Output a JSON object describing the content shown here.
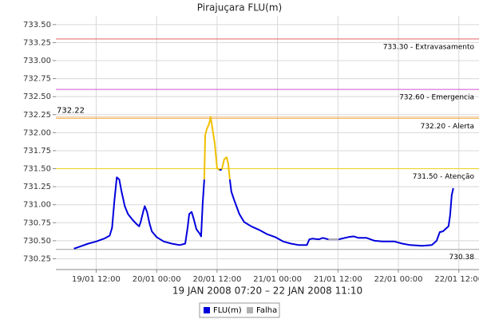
{
  "chart_data": {
    "type": "line",
    "title": "Pirajuçara FLU(m)",
    "subtitle": "19 JAN 2008 07:20 – 22 JAN 2008 11:10",
    "xlim": [
      "19/01 04:00",
      "22/01 16:00"
    ],
    "xticks": [
      "19/01 12:00",
      "20/01 00:00",
      "20/01 12:00",
      "21/01 00:00",
      "21/01 12:00",
      "22/01 00:00",
      "22/01 12:00"
    ],
    "ylim": [
      730.1,
      733.62
    ],
    "yticks": [
      {
        "value": 730.25,
        "label": "730.25"
      },
      {
        "value": 730.5,
        "label": "730.50"
      },
      {
        "value": 730.75,
        "label": "730.75"
      },
      {
        "value": 731,
        "label": "731.00"
      },
      {
        "value": 731.25,
        "label": "731.25"
      },
      {
        "value": 731.5,
        "label": "731.50"
      },
      {
        "value": 731.75,
        "label": "731.75"
      },
      {
        "value": 732,
        "label": "732.00"
      },
      {
        "value": 732.25,
        "label": "732.25"
      },
      {
        "value": 732.5,
        "label": "732.50"
      },
      {
        "value": 732.75,
        "label": "732.75"
      },
      {
        "value": 733,
        "label": "733.00"
      },
      {
        "value": 733.25,
        "label": "733.25"
      },
      {
        "value": 733.5,
        "label": "733.50"
      }
    ],
    "grid": true,
    "thresholds": [
      {
        "value": 733.3,
        "label": "733.30 - Extravasamento",
        "color": "#e06060"
      },
      {
        "value": 732.6,
        "label": "732.60 - Emergencia",
        "color": "#d050d0"
      },
      {
        "value": 732.2,
        "label": "732.20 - Alerta",
        "color": "#f0a030"
      },
      {
        "value": 731.5,
        "label": "731.50 - Atenção",
        "color": "#f0d020"
      },
      {
        "value": 730.38,
        "label": "730.38",
        "color": "#a0a0a0"
      }
    ],
    "annotations": [
      {
        "value": 732.22,
        "label": "732.22",
        "color": "#f0c8a0"
      }
    ],
    "series": [
      {
        "name": "FLU(m)",
        "color": "#0000dd",
        "x": [
          "19/01 07:35",
          "19/01 08:50",
          "19/01 10:25",
          "19/01 12:00",
          "19/01 13:35",
          "19/01 14:41",
          "19/01 15:09",
          "19/01 15:38",
          "19/01 16:06",
          "19/01 16:35",
          "19/01 17:03",
          "19/01 17:41",
          "19/01 18:19",
          "19/01 19:06",
          "19/01 19:54",
          "19/01 20:32",
          "19/01 20:50",
          "19/01 21:19",
          "19/01 21:38",
          "19/01 22:06",
          "19/01 22:35",
          "19/01 23:03",
          "20/01 00:00",
          "20/01 01:25",
          "20/01 03:00",
          "20/01 04:35",
          "20/01 05:41",
          "20/01 06:09",
          "20/01 06:28",
          "20/01 06:57",
          "20/01 07:25",
          "20/01 07:54",
          "20/01 08:32",
          "20/01 08:50",
          "20/01 09:09",
          "20/01 09:28",
          "20/01 09:38",
          "20/01 09:57",
          "20/01 10:25",
          "20/01 10:44",
          "20/01 11:03",
          "20/01 11:32",
          "20/01 12:00",
          "20/01 12:28",
          "20/01 12:57",
          "20/01 13:25",
          "20/01 13:54",
          "20/01 14:13",
          "20/01 14:32",
          "20/01 14:50",
          "20/01 15:28",
          "20/01 16:25",
          "20/01 17:22",
          "20/01 18:47",
          "20/01 20:22",
          "20/01 21:57",
          "20/01 23:32",
          "21/01 01:06",
          "21/01 02:41",
          "21/01 04:16",
          "21/01 05:50",
          "21/01 06:19",
          "21/01 06:57",
          "21/01 08:13",
          "21/01 09:00",
          "21/01 10:06",
          "21/01 12:09",
          "21/01 14:03",
          "21/01 15:09",
          "21/01 16:06",
          "21/01 17:41",
          "21/01 19:16",
          "21/01 20:50",
          "21/01 23:13",
          "22/01 00:47",
          "22/01 02:22",
          "22/01 04:44",
          "22/01 06:38",
          "22/01 07:35",
          "22/01 08:13",
          "22/01 08:50",
          "22/01 09:28",
          "22/01 09:57",
          "22/01 10:16",
          "22/01 10:35",
          "22/01 10:54"
        ],
        "values": [
          730.39,
          730.42,
          730.46,
          730.49,
          730.53,
          730.57,
          730.68,
          731.07,
          731.38,
          731.35,
          731.18,
          730.98,
          730.87,
          730.8,
          730.74,
          730.7,
          730.76,
          730.9,
          730.98,
          730.9,
          730.74,
          730.63,
          730.55,
          730.49,
          730.46,
          730.44,
          730.46,
          730.68,
          730.87,
          730.9,
          730.79,
          730.66,
          730.6,
          730.56,
          731.02,
          731.35,
          731.96,
          732.05,
          732.12,
          732.22,
          732.07,
          731.85,
          731.51,
          731.48,
          731.49,
          731.63,
          731.66,
          731.57,
          731.35,
          731.18,
          731.05,
          730.87,
          730.76,
          730.7,
          730.65,
          730.59,
          730.55,
          730.49,
          730.46,
          730.44,
          730.44,
          730.52,
          730.53,
          730.52,
          730.54,
          730.52,
          730.52,
          730.55,
          730.56,
          730.54,
          730.54,
          730.5,
          730.49,
          730.49,
          730.46,
          730.44,
          730.43,
          730.44,
          730.5,
          730.62,
          730.63,
          730.67,
          730.7,
          730.85,
          731.13,
          731.23
        ]
      },
      {
        "name": "Falha",
        "color": "#b0b0b0",
        "x": [
          "21/01 10:06",
          "21/01 12:09"
        ],
        "values": [
          730.52,
          730.52
        ]
      }
    ]
  }
}
